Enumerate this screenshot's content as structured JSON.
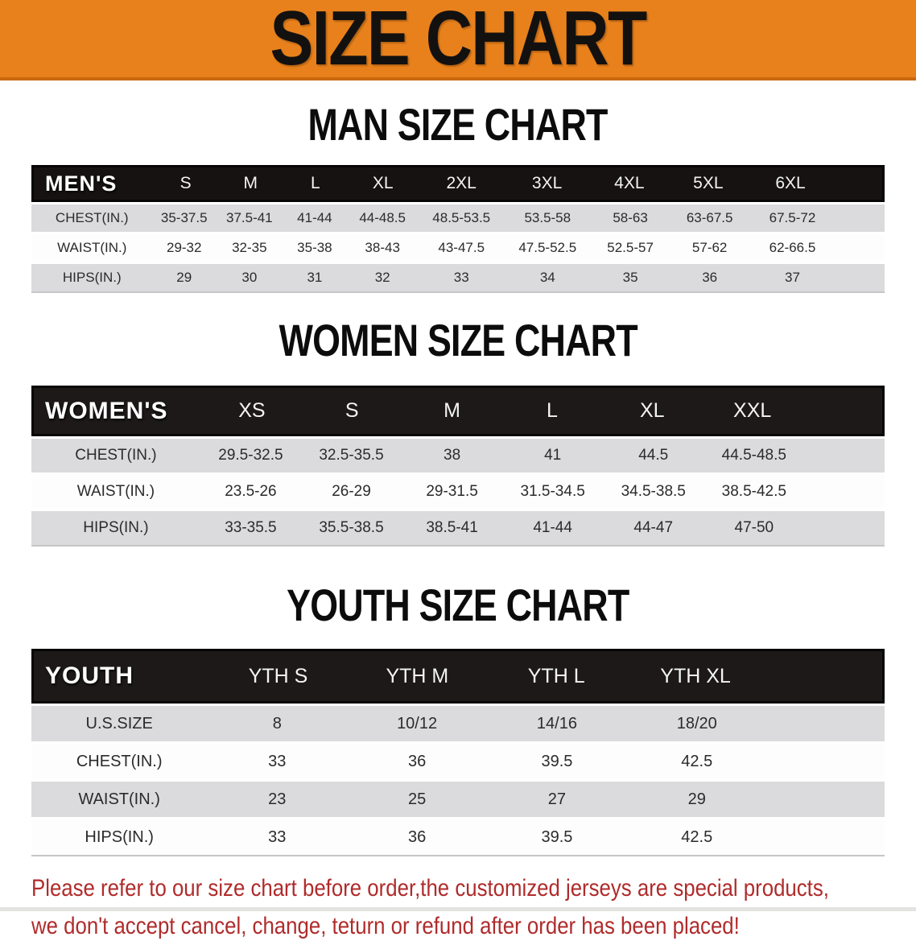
{
  "banner": {
    "title": "SIZE CHART"
  },
  "sections": {
    "men": {
      "heading": "MAN SIZE CHART",
      "table": {
        "group_label": "MEN'S",
        "columns": [
          "S",
          "M",
          "L",
          "XL",
          "2XL",
          "3XL",
          "4XL",
          "5XL",
          "6XL"
        ],
        "rows": [
          {
            "label": "CHEST(IN.)",
            "values": [
              "35-37.5",
              "37.5-41",
              "41-44",
              "44-48.5",
              "48.5-53.5",
              "53.5-58",
              "58-63",
              "63-67.5",
              "67.5-72"
            ]
          },
          {
            "label": "WAIST(IN.)",
            "values": [
              "29-32",
              "32-35",
              "35-38",
              "38-43",
              "43-47.5",
              "47.5-52.5",
              "52.5-57",
              "57-62",
              "62-66.5"
            ]
          },
          {
            "label": "HIPS(IN.)",
            "values": [
              "29",
              "30",
              "31",
              "32",
              "33",
              "34",
              "35",
              "36",
              "37"
            ]
          }
        ]
      }
    },
    "women": {
      "heading": "WOMEN SIZE CHART",
      "table": {
        "group_label": "WOMEN'S",
        "columns": [
          "XS",
          "S",
          "M",
          "L",
          "XL",
          "XXL"
        ],
        "rows": [
          {
            "label": "CHEST(IN.)",
            "values": [
              "29.5-32.5",
              "32.5-35.5",
              "38",
              "41",
              "44.5",
              "44.5-48.5"
            ]
          },
          {
            "label": "WAIST(IN.)",
            "values": [
              "23.5-26",
              "26-29",
              "29-31.5",
              "31.5-34.5",
              "34.5-38.5",
              "38.5-42.5"
            ]
          },
          {
            "label": "HIPS(IN.)",
            "values": [
              "33-35.5",
              "35.5-38.5",
              "38.5-41",
              "41-44",
              "44-47",
              "47-50"
            ]
          }
        ]
      }
    },
    "youth": {
      "heading": "YOUTH SIZE CHART",
      "table": {
        "group_label": "YOUTH",
        "columns": [
          "YTH S",
          "YTH M",
          "YTH L",
          "YTH XL"
        ],
        "rows": [
          {
            "label": "U.S.SIZE",
            "values": [
              "8",
              "10/12",
              "14/16",
              "18/20"
            ]
          },
          {
            "label": "CHEST(IN.)",
            "values": [
              "33",
              "36",
              "39.5",
              "42.5"
            ]
          },
          {
            "label": "WAIST(IN.)",
            "values": [
              "23",
              "25",
              "27",
              "29"
            ]
          },
          {
            "label": "HIPS(IN.)",
            "values": [
              "33",
              "36",
              "39.5",
              "42.5"
            ]
          }
        ]
      }
    }
  },
  "disclaimer": {
    "line1": "Please refer to our size chart before order,the customized jerseys are special products,",
    "line2": "we don't accept cancel, change, teturn or refund after order has been placed!"
  },
  "colors": {
    "banner_orange": "#E8811C",
    "banner_border": "#C9690F",
    "header_black": "#1C1918",
    "row_gray": "#DBDBDD",
    "disclaimer_red": "#B02B2B"
  }
}
